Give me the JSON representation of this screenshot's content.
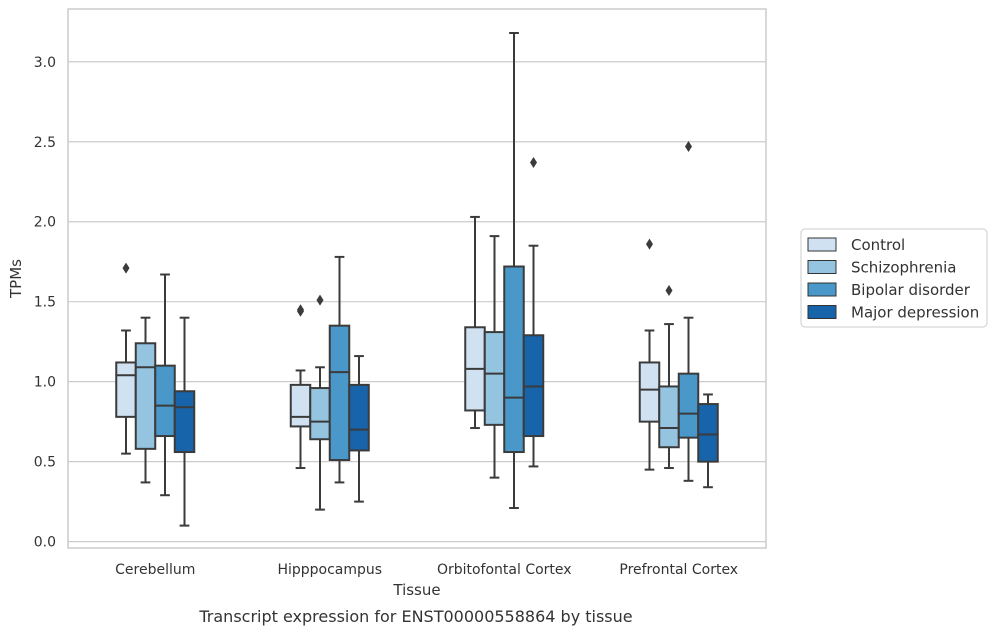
{
  "chart_data": {
    "type": "box",
    "caption": "Transcript expression for ENST00000558864 by tissue",
    "xlabel": "Tissue",
    "ylabel": "TPMs",
    "ylim": [
      -0.04,
      3.33
    ],
    "yticks": [
      "0.0",
      "0.5",
      "1.0",
      "1.5",
      "2.0",
      "2.5",
      "3.0"
    ],
    "categories": [
      "Cerebellum",
      "Hipppocampus",
      "Orbitofontal Cortex",
      "Prefrontal Cortex"
    ],
    "grid": "horizontal",
    "legend_position": "right",
    "series": [
      {
        "name": "Control",
        "color": "#d0e1f2",
        "boxes": [
          {
            "whislo": 0.55,
            "q1": 0.78,
            "med": 1.04,
            "q3": 1.12,
            "whishi": 1.32,
            "fliers": [
              1.71
            ]
          },
          {
            "whislo": 0.46,
            "q1": 0.72,
            "med": 0.78,
            "q3": 0.98,
            "whishi": 1.07,
            "fliers": [
              1.44,
              1.45
            ]
          },
          {
            "whislo": 0.71,
            "q1": 0.82,
            "med": 1.08,
            "q3": 1.34,
            "whishi": 2.03,
            "fliers": []
          },
          {
            "whislo": 0.45,
            "q1": 0.75,
            "med": 0.95,
            "q3": 1.12,
            "whishi": 1.32,
            "fliers": [
              1.86
            ]
          }
        ]
      },
      {
        "name": "Schizophrenia",
        "color": "#94c4df",
        "boxes": [
          {
            "whislo": 0.37,
            "q1": 0.58,
            "med": 1.09,
            "q3": 1.24,
            "whishi": 1.4,
            "fliers": []
          },
          {
            "whislo": 0.2,
            "q1": 0.64,
            "med": 0.75,
            "q3": 0.96,
            "whishi": 1.09,
            "fliers": [
              1.51
            ]
          },
          {
            "whislo": 0.4,
            "q1": 0.73,
            "med": 1.05,
            "q3": 1.31,
            "whishi": 1.91,
            "fliers": []
          },
          {
            "whislo": 0.46,
            "q1": 0.59,
            "med": 0.71,
            "q3": 0.97,
            "whishi": 1.36,
            "fliers": [
              1.57
            ]
          }
        ]
      },
      {
        "name": "Bipolar disorder",
        "color": "#4a98c9",
        "boxes": [
          {
            "whislo": 0.29,
            "q1": 0.66,
            "med": 0.85,
            "q3": 1.1,
            "whishi": 1.67,
            "fliers": []
          },
          {
            "whislo": 0.37,
            "q1": 0.51,
            "med": 1.06,
            "q3": 1.35,
            "whishi": 1.78,
            "fliers": []
          },
          {
            "whislo": 0.21,
            "q1": 0.56,
            "med": 0.9,
            "q3": 1.72,
            "whishi": 3.18,
            "fliers": []
          },
          {
            "whislo": 0.38,
            "q1": 0.65,
            "med": 0.8,
            "q3": 1.05,
            "whishi": 1.4,
            "fliers": [
              2.47
            ]
          }
        ]
      },
      {
        "name": "Major depression",
        "color": "#1764ab",
        "boxes": [
          {
            "whislo": 0.1,
            "q1": 0.56,
            "med": 0.84,
            "q3": 0.94,
            "whishi": 1.4,
            "fliers": []
          },
          {
            "whislo": 0.25,
            "q1": 0.57,
            "med": 0.7,
            "q3": 0.98,
            "whishi": 1.16,
            "fliers": []
          },
          {
            "whislo": 0.47,
            "q1": 0.66,
            "med": 0.97,
            "q3": 1.29,
            "whishi": 1.85,
            "fliers": [
              2.37
            ]
          },
          {
            "whislo": 0.34,
            "q1": 0.5,
            "med": 0.67,
            "q3": 0.86,
            "whishi": 0.92,
            "fliers": []
          }
        ]
      }
    ],
    "style": {
      "grid_color": "#cccccc",
      "frame_color": "#cccccc",
      "line_color": "#3b3b3b"
    }
  }
}
